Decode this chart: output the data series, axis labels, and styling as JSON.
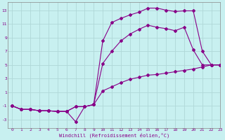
{
  "bg_color": "#c8f0f0",
  "grid_color": "#b0d8d8",
  "line_color": "#880088",
  "xlabel": "Windchill (Refroidissement éolien,°C)",
  "xlim": [
    -0.5,
    23
  ],
  "ylim": [
    -4.2,
    14.2
  ],
  "yticks": [
    -3,
    -1,
    1,
    3,
    5,
    7,
    9,
    11,
    13
  ],
  "xticks": [
    0,
    1,
    2,
    3,
    4,
    5,
    6,
    7,
    8,
    9,
    10,
    11,
    12,
    13,
    14,
    15,
    16,
    17,
    18,
    19,
    20,
    21,
    22,
    23
  ],
  "series1_x": [
    0,
    1,
    2,
    3,
    4,
    5,
    6,
    7,
    8,
    9,
    10,
    11,
    12,
    13,
    14,
    15,
    16,
    17,
    18,
    19,
    20,
    21,
    22,
    23
  ],
  "series1_y": [
    -1,
    -1.5,
    -1.5,
    -1.7,
    -1.7,
    -1.8,
    -1.8,
    -3.3,
    -1.1,
    -0.8,
    1.2,
    1.8,
    2.4,
    2.9,
    3.2,
    3.5,
    3.6,
    3.8,
    4.0,
    4.2,
    4.4,
    4.7,
    5.0,
    5.0
  ],
  "series2_x": [
    0,
    1,
    2,
    3,
    4,
    5,
    6,
    7,
    8,
    9,
    10,
    11,
    12,
    13,
    14,
    15,
    16,
    17,
    18,
    19,
    20,
    21,
    22,
    23
  ],
  "series2_y": [
    -1,
    -1.5,
    -1.5,
    -1.7,
    -1.7,
    -1.8,
    -1.8,
    -1.1,
    -1.1,
    -0.8,
    5.2,
    7.0,
    8.5,
    9.5,
    10.2,
    10.8,
    10.5,
    10.3,
    10.0,
    10.5,
    7.2,
    5.0,
    5.0,
    5.0
  ],
  "series3_x": [
    0,
    1,
    2,
    3,
    4,
    5,
    6,
    7,
    8,
    9,
    10,
    11,
    12,
    13,
    14,
    15,
    16,
    17,
    18,
    19,
    20,
    21,
    22,
    23
  ],
  "series3_y": [
    -1,
    -1.5,
    -1.5,
    -1.7,
    -1.7,
    -1.8,
    -1.8,
    -1.1,
    -1.1,
    -0.8,
    8.5,
    11.2,
    11.8,
    12.3,
    12.7,
    13.3,
    13.3,
    13.0,
    12.8,
    12.9,
    12.9,
    7.0,
    5.0,
    5.0
  ]
}
